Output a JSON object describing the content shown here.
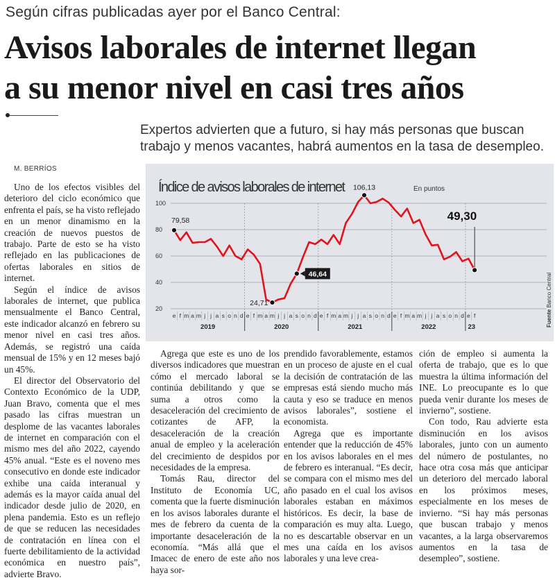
{
  "article": {
    "kicker": "Según cifras publicadas ayer por el Banco Central:",
    "headline_line1": "Avisos laborales de internet llegan",
    "headline_line2": "a su menor nivel en casi tres años",
    "deck": "Expertos advierten que a futuro, si hay más personas que buscan trabajo y menos vacantes, habrá aumentos en la tasa de desempleo.",
    "byline": "M. BERRÍOS",
    "columns": [
      [
        {
          "cont": false,
          "text": "Uno de los efectos visibles del deterioro del ciclo económico que enfrenta el país, se ha visto reflejado en un menor dinamismo en la creación de nuevos puestos de trabajo. Parte de esto se ha visto reflejado en las publicaciones de ofertas laborales en sitios de internet."
        },
        {
          "cont": false,
          "text": "Según el índice de avisos laborales de internet, que publica mensualmente el Banco Central, este indicador alcanzó en febrero su menor nivel en casi tres años. Además, se registró una caída mensual de 15% y en 12 meses bajó un 45%."
        },
        {
          "cont": false,
          "text": "El director del Observatorio del Contexto Económico de la UDP, Juan Bravo, comenta que el mes pasado las cifras muestran un desplome de las vacantes laborales de internet en comparación con el mismo mes del año 2022, cayendo 45% anual. “Este es el noveno mes consecutivo en donde este indicador exhibe una caída interanual y además es la mayor caída anual del indicador desde julio de 2020, en plena pandemia. Esto es un reflejo de que se reducen las necesidades de contratación en línea con el fuerte debilitamiento de la actividad económica en nuestro país”, advierte Bravo."
        }
      ],
      [
        {
          "cont": false,
          "text": "Agrega que este es uno de los diversos indicadores que muestran cómo el mercado laboral se continúa debilitando y que se suma a otros como la desaceleración del crecimiento de cotizantes de AFP, la desaceleración de la creación anual de empleo y la aceleración del crecimiento de despidos por necesidades de la empresa."
        },
        {
          "cont": false,
          "text": "Tomás Rau, director del Instituto de Economía UC, comenta que la fuerte disminución en los avisos laborales durante el mes de febrero da cuenta de la importante desaceleración de la economía. “Más allá que el Imacec de enero de este año nos haya sor-"
        }
      ],
      [
        {
          "cont": true,
          "text": "prendido favorablemente, estamos en un proceso de ajuste en el cual la decisión de contratación de las empresas está siendo mucho más cauta y eso se traduce en menos avisos laborales”, sostiene el economista."
        },
        {
          "cont": false,
          "text": "Agrega que es importante entender que la reducción de 45% en los avisos laborales en el mes de febrero es interanual. “Es decir, se compara con el mismo mes del año pasado en el cual los avisos laborales estaban en máximos históricos. Es decir, la base de comparación es muy alta. Luego, no es descartable observar en un mes una caída en los avisos laborales y una leve crea-"
        }
      ],
      [
        {
          "cont": true,
          "text": "ción de empleo si aumenta la oferta de trabajo, que es lo que muestra la última información del INE. Lo preocupante es lo que pueda venir durante los meses de invierno”, sostiene."
        },
        {
          "cont": false,
          "text": "Con todo, Rau advierte esta disminución en los avisos laborales, junto con un aumento del número de postulantes, no hace otra cosa más que anticipar un deterioro del mercado laboral en los próximos meses, especialmente en los meses de invierno. “Si hay más personas que buscan trabajo y menos vacantes, a la larga observaremos aumentos en la tasa de desempleo”, sostiene."
        }
      ]
    ]
  },
  "chart_data": {
    "type": "line",
    "title": "Índice de avisos laborales de internet",
    "unit_label": "En puntos",
    "source_label": "Fuente",
    "source": "Banco Central",
    "ylim": [
      20,
      110
    ],
    "yticks": [
      20,
      40,
      60,
      80,
      100
    ],
    "grid": true,
    "month_labels": [
      "e",
      "f",
      "m",
      "a",
      "m",
      "j",
      "j",
      "a",
      "s",
      "o",
      "n",
      "d"
    ],
    "years": [
      {
        "label": "2019",
        "months": 12
      },
      {
        "label": "2020",
        "months": 12
      },
      {
        "label": "2021",
        "months": 12
      },
      {
        "label": "2022",
        "months": 12
      },
      {
        "label": "23",
        "months": 2
      }
    ],
    "series": [
      {
        "name": "Índice de avisos laborales de internet",
        "color": "#e0141e",
        "values": [
          79.58,
          72,
          78,
          70,
          70.5,
          70.5,
          73,
          67,
          60,
          68,
          60,
          57.5,
          65,
          61,
          54,
          27,
          24.71,
          27,
          28,
          39,
          46.64,
          59,
          70.5,
          69,
          72.5,
          69,
          76,
          69,
          85,
          92,
          101,
          106.13,
          100,
          101,
          103.5,
          100.5,
          95,
          90,
          96,
          85,
          87.5,
          76.5,
          68,
          68.5,
          57.5,
          59.5,
          63,
          56,
          58,
          49.3
        ]
      }
    ],
    "annotations": [
      {
        "index": 0,
        "label": "79,58",
        "style": "plain"
      },
      {
        "index": 16,
        "label": "24,71",
        "style": "plain"
      },
      {
        "index": 20,
        "label": "46,64",
        "style": "boxed"
      },
      {
        "index": 31,
        "label": "106,13",
        "style": "plain"
      },
      {
        "index": 49,
        "label": "49,30",
        "style": "bold"
      }
    ]
  }
}
